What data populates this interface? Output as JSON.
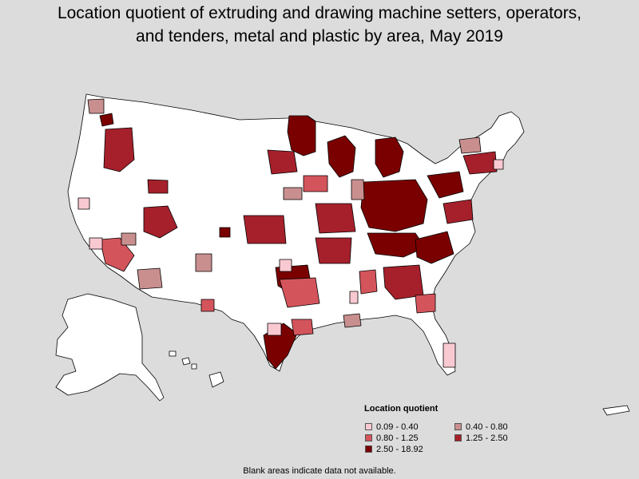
{
  "title": {
    "line1": "Location quotient of extruding and drawing machine setters, operators,",
    "line2": "and tenders, metal and plastic by area, May 2019"
  },
  "legend": {
    "title": "Location quotient",
    "items": [
      {
        "label": "0.09 - 0.40",
        "color": "#f9c9d1"
      },
      {
        "label": "0.40 - 0.80",
        "color": "#c98f8f"
      },
      {
        "label": "0.80 - 1.25",
        "color": "#d4545c"
      },
      {
        "label": "1.25 - 2.50",
        "color": "#a5202b"
      },
      {
        "label": "2.50 - 18.92",
        "color": "#7a0000"
      }
    ]
  },
  "footnote": "Blank areas indicate data not available.",
  "colors": {
    "background": "#dcdcdc",
    "no_data": "#ffffff",
    "border": "#000000"
  }
}
